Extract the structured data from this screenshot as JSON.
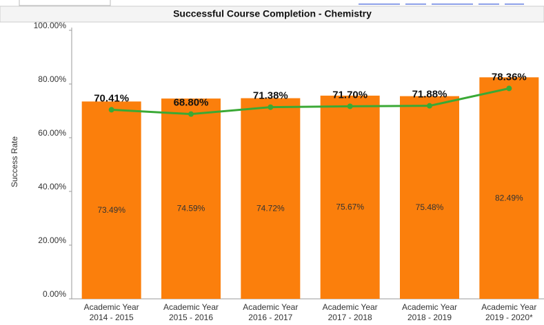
{
  "chart_data": {
    "type": "bar_line",
    "title": "Successful Course Completion - Chemistry",
    "y_label": "Success Rate",
    "categories": [
      "Academic Year\n2014 - 2015",
      "Academic Year\n2015 - 2016",
      "Academic Year\n2016 - 2017",
      "Academic Year\n2017 - 2018",
      "Academic Year\n2018 - 2019",
      "Academic Year\n2019 - 2020*"
    ],
    "series": [
      {
        "type": "bar",
        "color": "#fb7f0c",
        "values": [
          73.49,
          74.59,
          74.72,
          75.67,
          75.48,
          82.49
        ],
        "value_labels": [
          "73.49%",
          "74.59%",
          "74.72%",
          "75.67%",
          "75.48%",
          "82.49%"
        ]
      },
      {
        "type": "line",
        "color": "#3aa935",
        "values": [
          70.41,
          68.8,
          71.38,
          71.7,
          71.88,
          78.36
        ],
        "value_labels": [
          "70.41%",
          "68.80%",
          "71.38%",
          "71.70%",
          "71.88%",
          "78.36%"
        ]
      }
    ],
    "ylim": [
      0,
      100
    ],
    "yticks": [
      {
        "value": 0,
        "label": "0.00%"
      },
      {
        "value": 20,
        "label": "20.00%"
      },
      {
        "value": 40,
        "label": "40.00%"
      },
      {
        "value": 60,
        "label": "60.00%"
      },
      {
        "value": 80,
        "label": "80.00%"
      },
      {
        "value": 100,
        "label": "100.00%"
      }
    ]
  }
}
